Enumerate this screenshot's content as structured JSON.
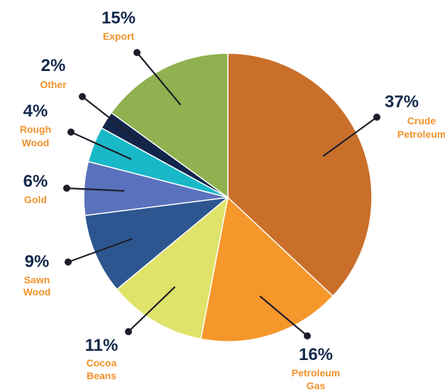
{
  "chart_data": {
    "type": "pie",
    "title": "",
    "colors": {
      "percent_text": "#142a4c",
      "label_text": "#f0922a",
      "leader_line": "#1d1d2a"
    },
    "slices": [
      {
        "label": "Crude Petroleum",
        "lines": [
          "Crude",
          "Petroleum"
        ],
        "percent_text": "37%",
        "value": 37,
        "color": "#c96f2a"
      },
      {
        "label": "Petroleum Gas",
        "lines": [
          "Petroleum",
          "Gas"
        ],
        "percent_text": "16%",
        "value": 16,
        "color": "#f6972b"
      },
      {
        "label": "Cocoa Beans",
        "lines": [
          "Cocoa",
          "Beans"
        ],
        "percent_text": "11%",
        "value": 11,
        "color": "#dfe36a"
      },
      {
        "label": "Sawn Wood",
        "lines": [
          "Sawn",
          "Wood"
        ],
        "percent_text": "9%",
        "value": 9,
        "color": "#2d5690"
      },
      {
        "label": "Gold",
        "lines": [
          "Gold"
        ],
        "percent_text": "6%",
        "value": 6,
        "color": "#5a72bd"
      },
      {
        "label": "Rough Wood",
        "lines": [
          "Rough",
          "Wood"
        ],
        "percent_text": "4%",
        "value": 4,
        "color": "#19b8c9"
      },
      {
        "label": "Other",
        "lines": [
          "Other"
        ],
        "percent_text": "2%",
        "value": 2,
        "color": "#12254b"
      },
      {
        "label": "Export",
        "lines": [
          "Export"
        ],
        "percent_text": "15%",
        "value": 15,
        "color": "#8fb14f"
      }
    ]
  }
}
